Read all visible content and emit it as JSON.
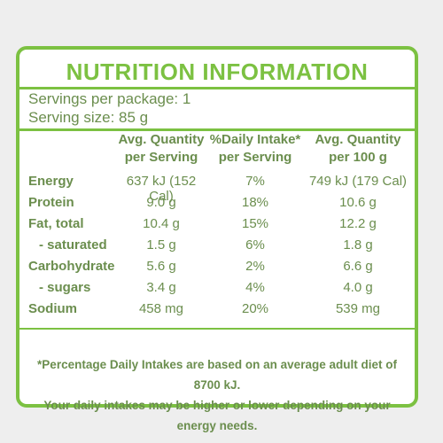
{
  "title": "NUTRITION INFORMATION",
  "servings_per_package": "Servings per package: 1",
  "serving_size": "Serving size: 85 g",
  "headers": {
    "col1": [
      "Avg. Quantity",
      "per Serving"
    ],
    "col2": [
      "%Daily Intake*",
      "per Serving"
    ],
    "col3": [
      "Avg. Quantity",
      "per 100 g"
    ]
  },
  "rows": [
    {
      "name": "Energy",
      "per_serving": "637 kJ (152 Cal)",
      "daily_intake": "7%",
      "per_100g": "749 kJ (179 Cal)"
    },
    {
      "name": "Protein",
      "per_serving": "9.0 g",
      "daily_intake": "18%",
      "per_100g": "10.6 g"
    },
    {
      "name": "Fat, total",
      "per_serving": "10.4 g",
      "daily_intake": "15%",
      "per_100g": "12.2 g"
    },
    {
      "name": "- saturated",
      "per_serving": "1.5 g",
      "daily_intake": "6%",
      "per_100g": "1.8 g"
    },
    {
      "name": "Carbohydrate",
      "per_serving": "5.6 g",
      "daily_intake": "2%",
      "per_100g": "6.6 g"
    },
    {
      "name": "- sugars",
      "per_serving": "3.4 g",
      "daily_intake": "4%",
      "per_100g": "4.0 g"
    },
    {
      "name": "Sodium",
      "per_serving": "458 mg",
      "daily_intake": "20%",
      "per_100g": "539 mg"
    }
  ],
  "footnote": [
    "*Percentage Daily Intakes are based on an average adult diet of 8700 kJ.",
    "Your daily intakes may be higher or lower depending on your energy needs."
  ],
  "colors": {
    "accent": "#7cc142",
    "text": "#6b8e4e"
  }
}
